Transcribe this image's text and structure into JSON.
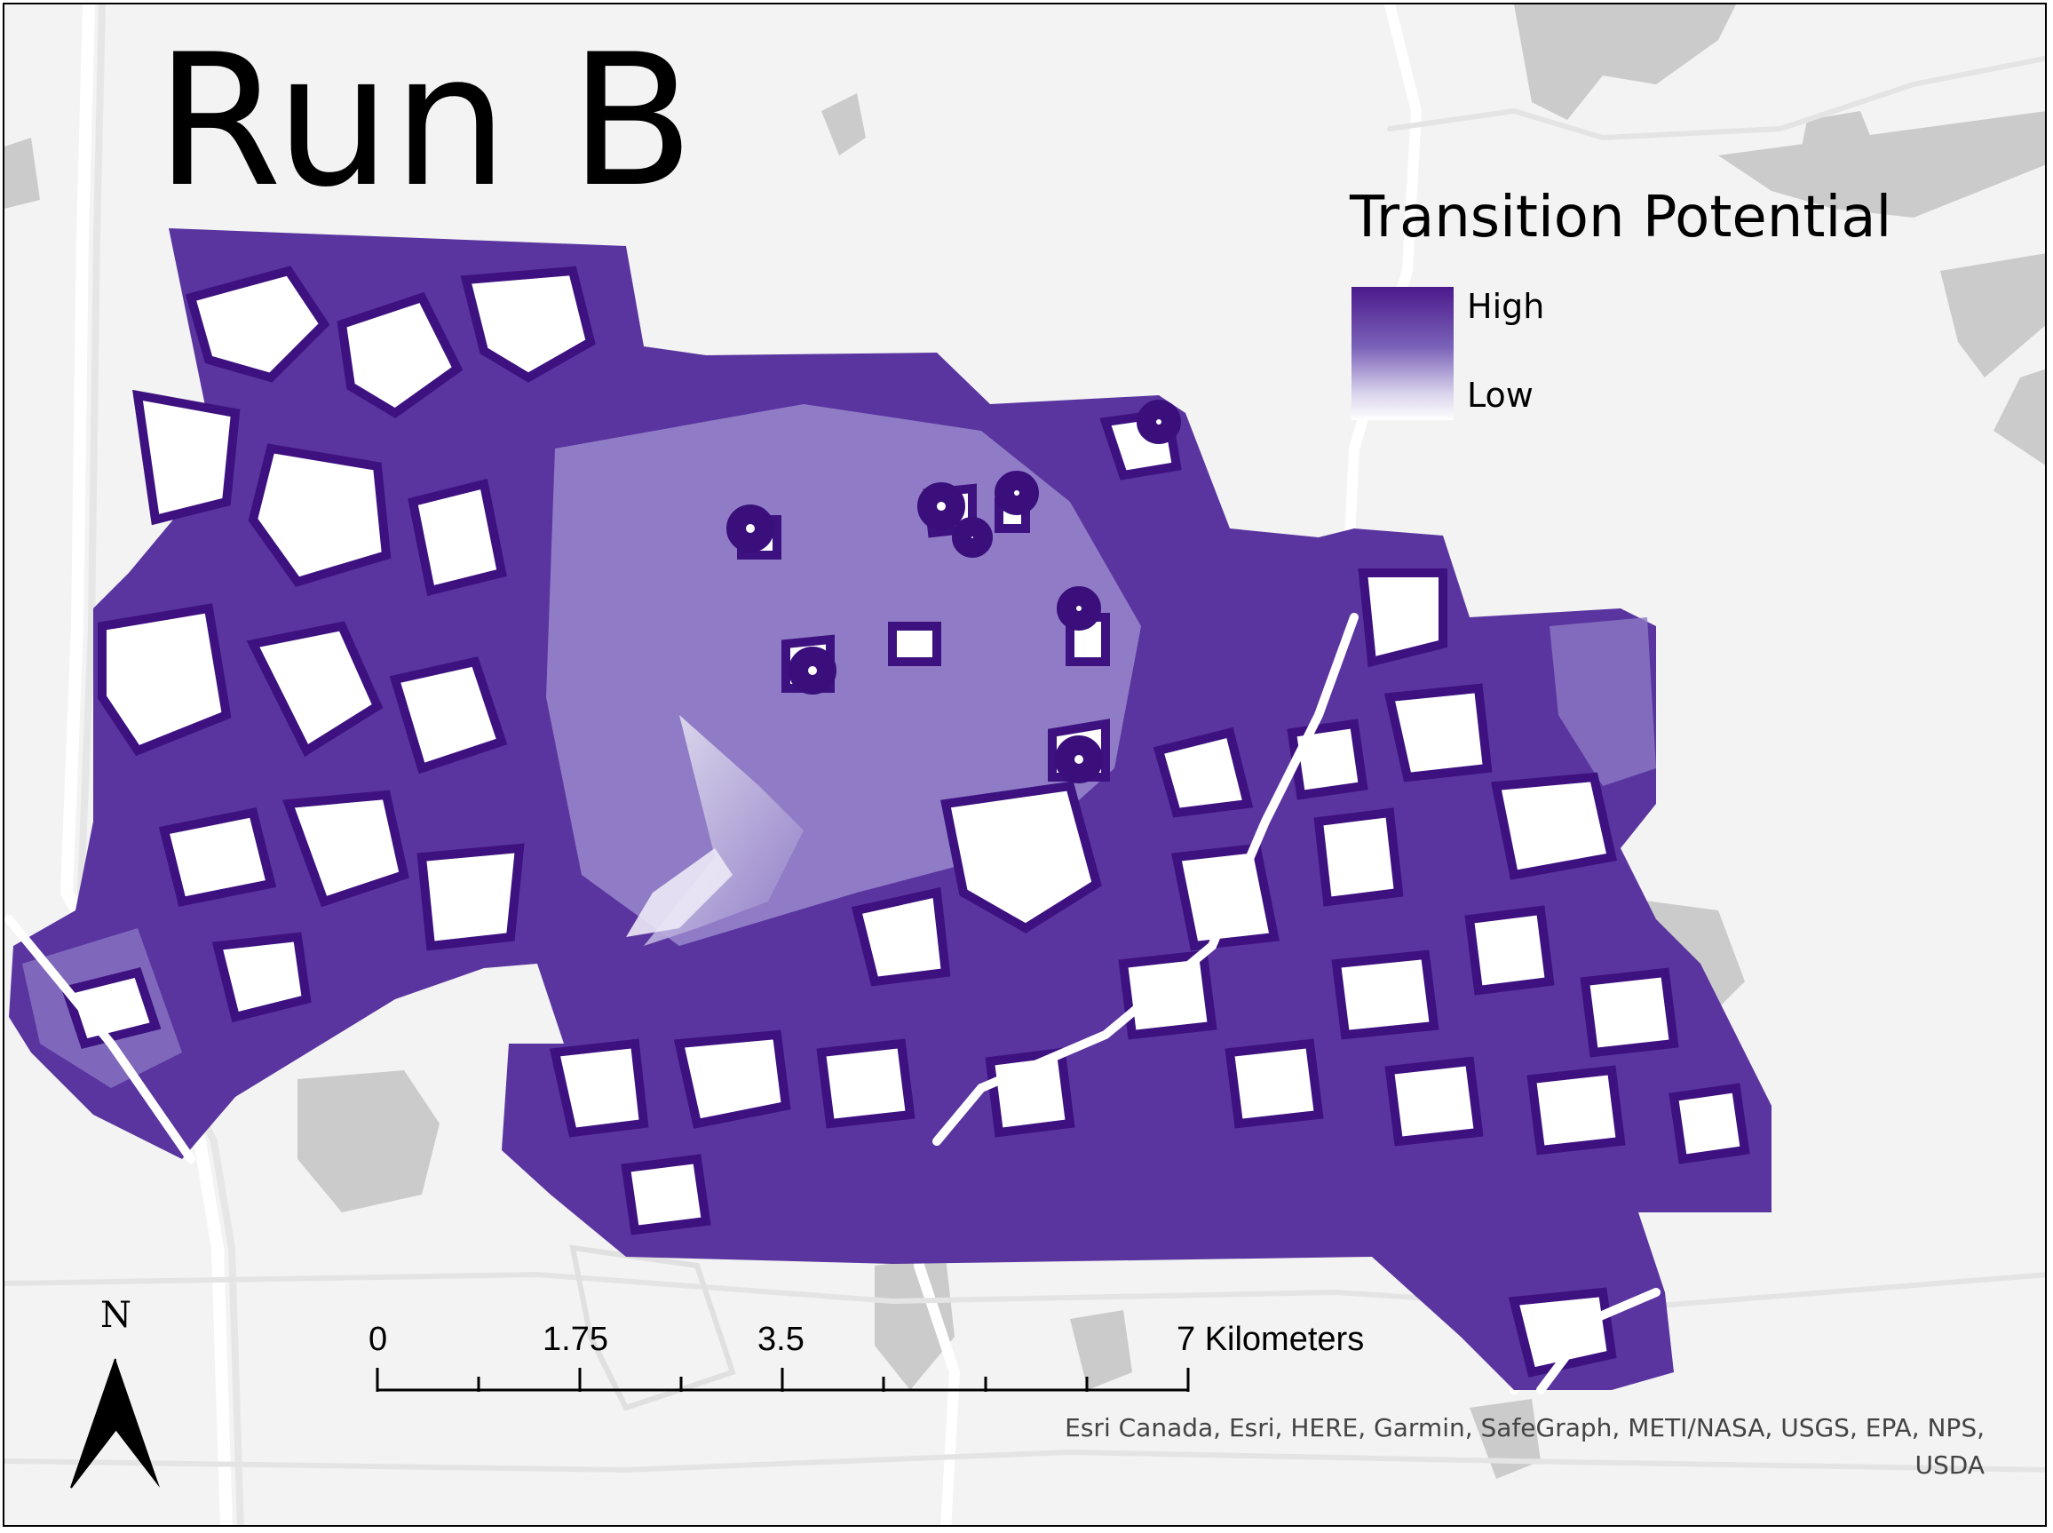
{
  "map": {
    "title": "Run B",
    "colors": {
      "background": "#f3f3f3",
      "water": "#c8c8c8",
      "roads": "#ffffff",
      "high": "#4b1a8c",
      "mid": "#7a62b8",
      "low": "#ffffff"
    }
  },
  "legend": {
    "title": "Transition Potential",
    "high_label": "High",
    "low_label": "Low"
  },
  "scale_bar": {
    "labels": [
      "0",
      "1.75",
      "3.5",
      "7 Kilometers"
    ],
    "unit": "Kilometers"
  },
  "north_arrow": {
    "label": "N",
    "icon": "north-arrow-icon"
  },
  "attribution": "Esri Canada, Esri, HERE, Garmin, SafeGraph, METI/NASA, USGS, EPA, NPS, USDA"
}
